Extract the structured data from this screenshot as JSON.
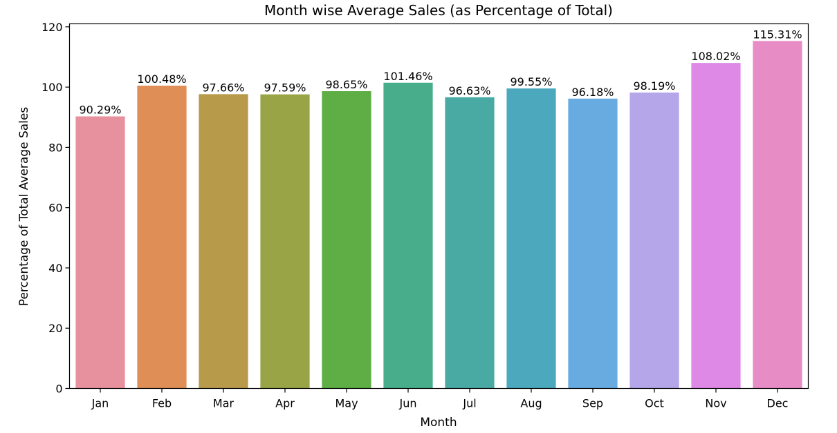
{
  "chart_data": {
    "type": "bar",
    "title": "Month wise Average Sales (as Percentage of Total)",
    "xlabel": "Month",
    "ylabel": "Percentage of Total Average Sales",
    "categories": [
      "Jan",
      "Feb",
      "Mar",
      "Apr",
      "May",
      "Jun",
      "Jul",
      "Aug",
      "Sep",
      "Oct",
      "Nov",
      "Dec"
    ],
    "values": [
      90.29,
      100.48,
      97.66,
      97.59,
      98.65,
      101.46,
      96.63,
      99.55,
      96.18,
      98.19,
      108.02,
      115.31
    ],
    "value_labels": [
      "90.29%",
      "100.48%",
      "97.66%",
      "97.59%",
      "98.65%",
      "101.46%",
      "96.63%",
      "99.55%",
      "96.18%",
      "98.19%",
      "108.02%",
      "115.31%"
    ],
    "bar_colors": [
      "#e8919e",
      "#df8e55",
      "#b89a4b",
      "#99a446",
      "#5eae45",
      "#48ad8a",
      "#49aaa4",
      "#4ca8bd",
      "#68abe0",
      "#b5a6e9",
      "#de89e6",
      "#e88cc6"
    ],
    "ylim": [
      0,
      121
    ],
    "yticks": [
      0,
      20,
      40,
      60,
      80,
      100,
      120
    ],
    "grid": false,
    "legend": "none"
  }
}
